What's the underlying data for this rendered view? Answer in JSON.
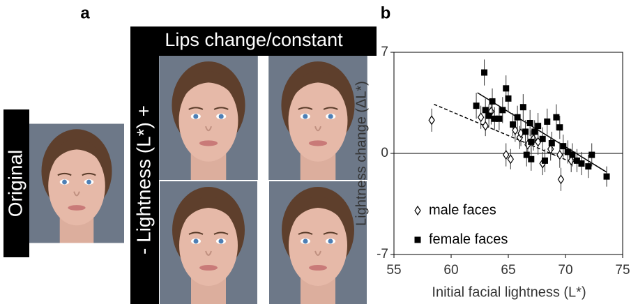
{
  "panel_a": {
    "label": "a",
    "header": "Lips change/constant",
    "side_label": "- Lightness (L*) +",
    "original_label": "Original"
  },
  "chart_data": {
    "type": "scatter",
    "panel_label": "b",
    "xlabel": "Initial facial lightness (L*)",
    "ylabel": "Lightness change (ΔL*)",
    "xlim": [
      55,
      75
    ],
    "xticks": [
      55,
      60,
      65,
      70,
      75
    ],
    "ylim": [
      -7,
      7
    ],
    "yticks": [
      -7,
      0,
      7
    ],
    "legend": "lower left",
    "series": [
      {
        "name": "male faces",
        "marker": "diamond",
        "color": "#000000",
        "x": [
          58.3,
          62.6,
          63.0,
          63.5,
          64.8,
          65.2,
          65.6,
          66.0,
          66.1,
          66.7,
          67.2,
          67.6,
          68.0,
          68.7,
          69.5,
          69.6,
          70.5
        ],
        "values": [
          2.3,
          2.5,
          1.9,
          2.9,
          -0.1,
          -0.4,
          1.6,
          1.1,
          1.4,
          0.6,
          1.0,
          0.8,
          -0.7,
          0.3,
          -0.1,
          -1.8,
          -0.5
        ],
        "errors": [
          0.8,
          0.8,
          0.7,
          0.9,
          0.8,
          0.7,
          0.8,
          0.8,
          0.9,
          0.8,
          0.8,
          0.9,
          0.8,
          0.8,
          0.9,
          0.8,
          0.8
        ]
      },
      {
        "name": "female faces",
        "marker": "square",
        "color": "#000000",
        "x": [
          62.2,
          62.9,
          63.0,
          63.3,
          63.6,
          63.8,
          64.2,
          64.5,
          64.8,
          65.0,
          65.4,
          65.8,
          66.3,
          66.5,
          66.6,
          66.9,
          67.0,
          67.0,
          67.3,
          67.6,
          68.0,
          68.2,
          68.4,
          68.8,
          69.2,
          69.5,
          69.8,
          70.2,
          70.6,
          71.0,
          71.4,
          72.0,
          72.3,
          73.6
        ],
        "values": [
          3.3,
          5.6,
          3.0,
          2.6,
          3.6,
          2.4,
          2.4,
          3.0,
          4.5,
          3.8,
          2.0,
          2.5,
          3.2,
          1.5,
          -0.1,
          2.1,
          0.8,
          -0.4,
          1.5,
          1.9,
          1.0,
          -0.5,
          2.2,
          0.7,
          2.5,
          1.8,
          0.5,
          0.1,
          -0.1,
          -0.5,
          -0.7,
          -0.9,
          -0.1,
          -1.6
        ],
        "errors": [
          0.9,
          0.9,
          0.8,
          0.8,
          0.9,
          0.8,
          0.8,
          0.9,
          0.9,
          0.9,
          0.8,
          0.8,
          0.9,
          0.8,
          0.8,
          0.9,
          0.8,
          0.8,
          0.8,
          0.9,
          0.8,
          0.8,
          0.9,
          0.8,
          0.9,
          0.8,
          0.8,
          0.8,
          0.8,
          0.8,
          0.8,
          0.8,
          0.8,
          0.7
        ]
      }
    ],
    "trendlines": [
      {
        "x": [
          62.3,
          73.6
        ],
        "values": [
          4.2,
          -1.3
        ],
        "style": "solid"
      },
      {
        "x": [
          58.5,
          70.5
        ],
        "values": [
          3.4,
          -0.6
        ],
        "style": "dashed"
      }
    ]
  }
}
